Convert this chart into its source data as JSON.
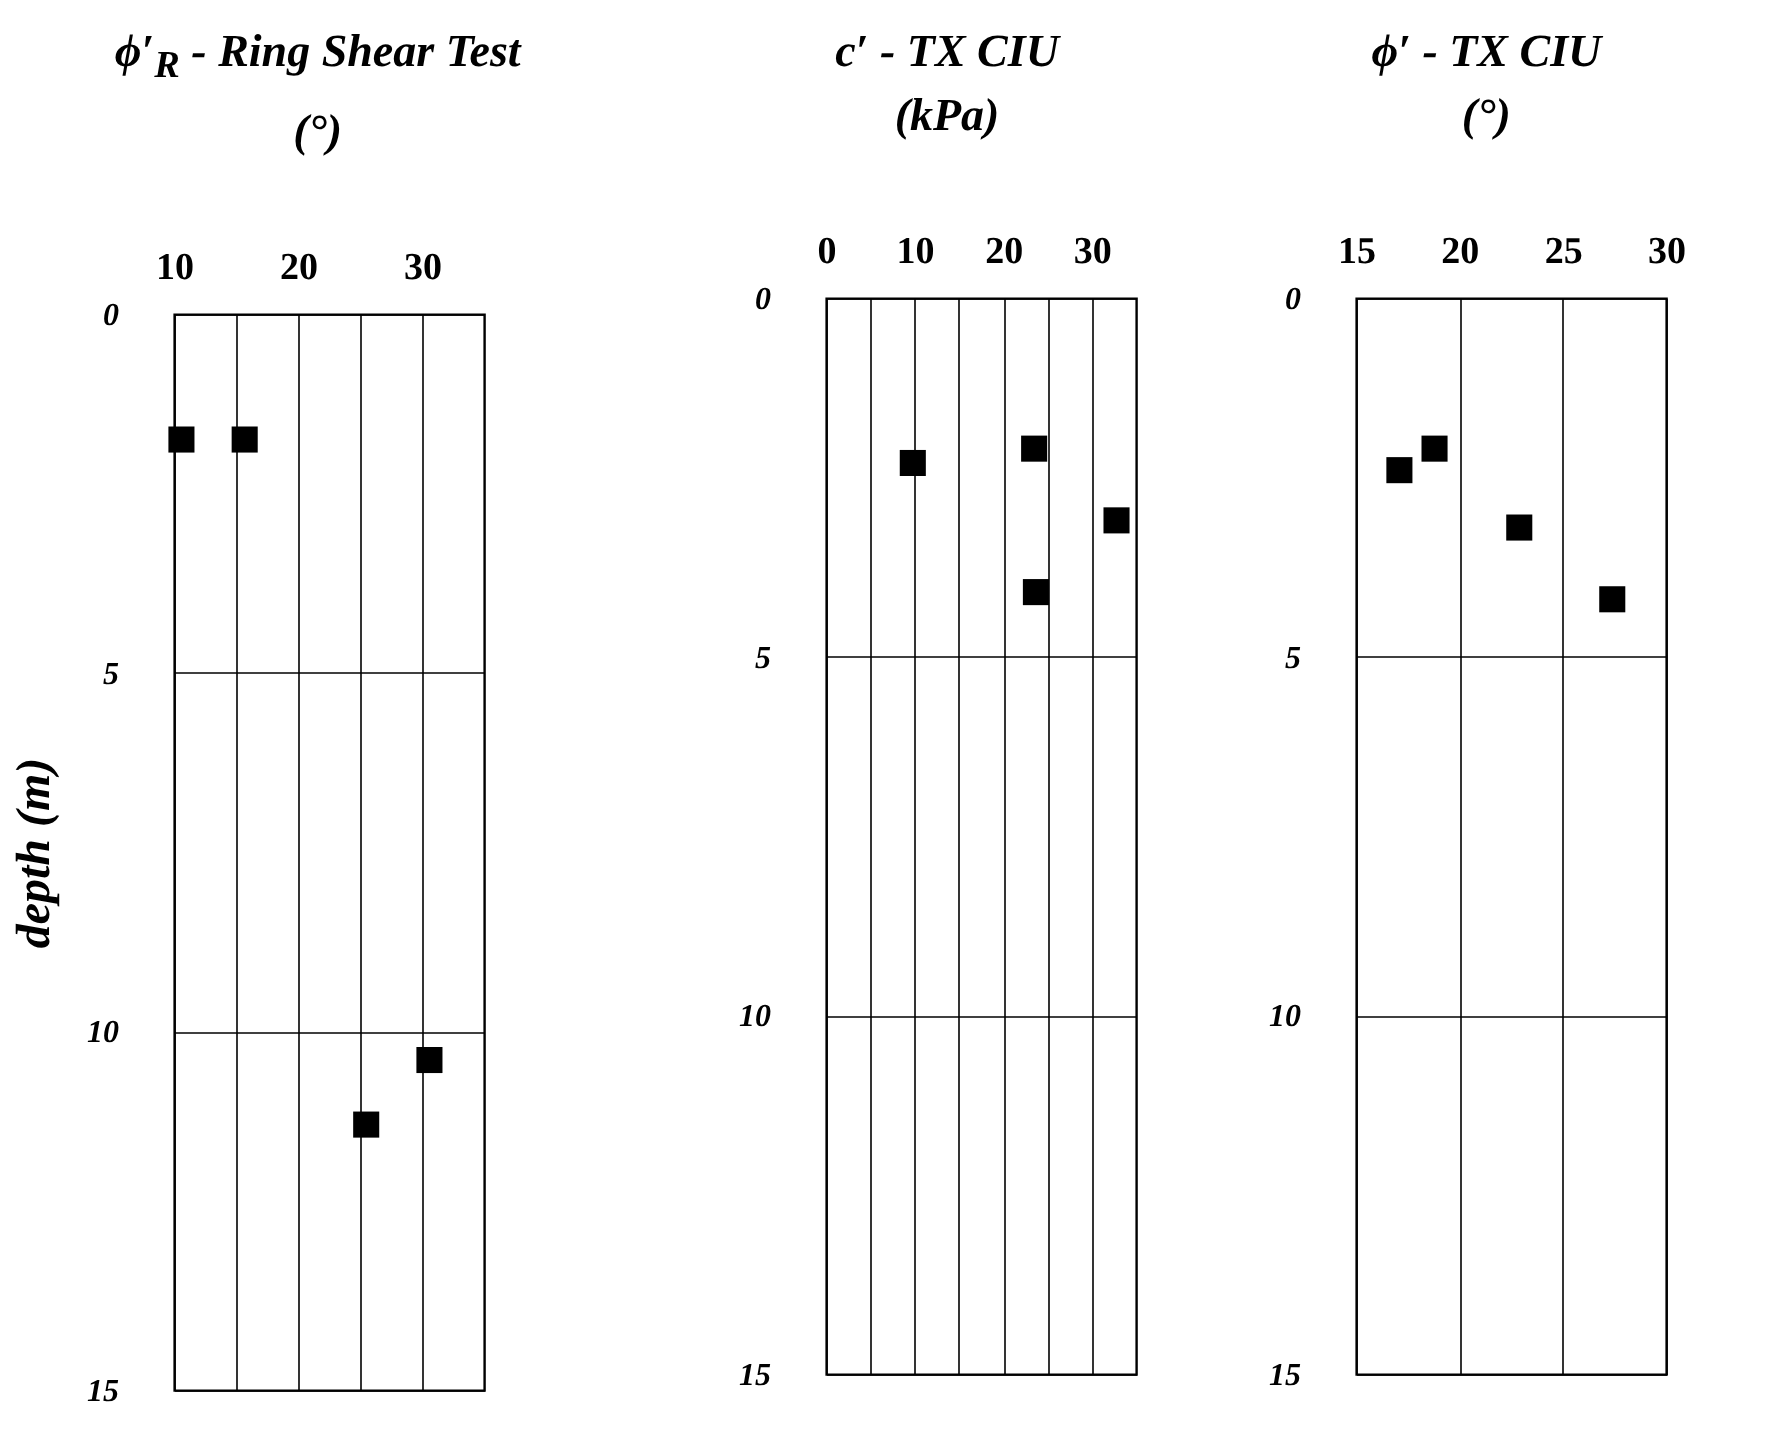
{
  "chart_data": [
    {
      "type": "scatter",
      "title": "ϕ′$_{R}$ - Ring Shear Test",
      "subtitle": "(°)",
      "ylabel": "depth (m)",
      "marker": "square",
      "grid": true,
      "xlim": [
        10,
        35
      ],
      "xticks": [
        10,
        {
          "value": 15,
          "label": null
        },
        20,
        {
          "value": 25,
          "label": null
        },
        30
      ],
      "ylim": [
        15,
        0
      ],
      "yticks": [
        0,
        5,
        10,
        15
      ],
      "series": [
        {
          "color": "#000000",
          "x": [
            10.6,
            15.7,
            25.5,
            30.6
          ],
          "values": [
            1.75,
            1.75,
            11.3,
            10.4
          ]
        }
      ]
    },
    {
      "type": "scatter",
      "title": "c′ - TX CIU",
      "subtitle": "(kPa)",
      "marker": "square",
      "grid": true,
      "xlim": [
        0,
        35
      ],
      "xticks": [
        0,
        {
          "value": 5,
          "label": null
        },
        10,
        {
          "value": 15,
          "label": null
        },
        20,
        {
          "value": 25,
          "label": null
        },
        30
      ],
      "ylim": [
        15,
        0
      ],
      "yticks": [
        0,
        5,
        10,
        15
      ],
      "series": [
        {
          "color": "#000000",
          "x": [
            9.8,
            23.5,
            32.8,
            23.7
          ],
          "values": [
            2.3,
            2.1,
            3.1,
            4.1
          ]
        }
      ]
    },
    {
      "type": "scatter",
      "title": "ϕ′ - TX CIU",
      "subtitle": "(°)",
      "marker": "square",
      "grid": true,
      "xlim": [
        15,
        30
      ],
      "xticks": [
        15,
        20,
        25,
        30
      ],
      "ylim": [
        15,
        0
      ],
      "yticks": [
        0,
        5,
        10,
        15
      ],
      "series": [
        {
          "color": "#000000",
          "x": [
            17.1,
            18.8,
            22.9,
            27.4
          ],
          "values": [
            2.4,
            2.1,
            3.2,
            4.2
          ]
        }
      ]
    }
  ]
}
